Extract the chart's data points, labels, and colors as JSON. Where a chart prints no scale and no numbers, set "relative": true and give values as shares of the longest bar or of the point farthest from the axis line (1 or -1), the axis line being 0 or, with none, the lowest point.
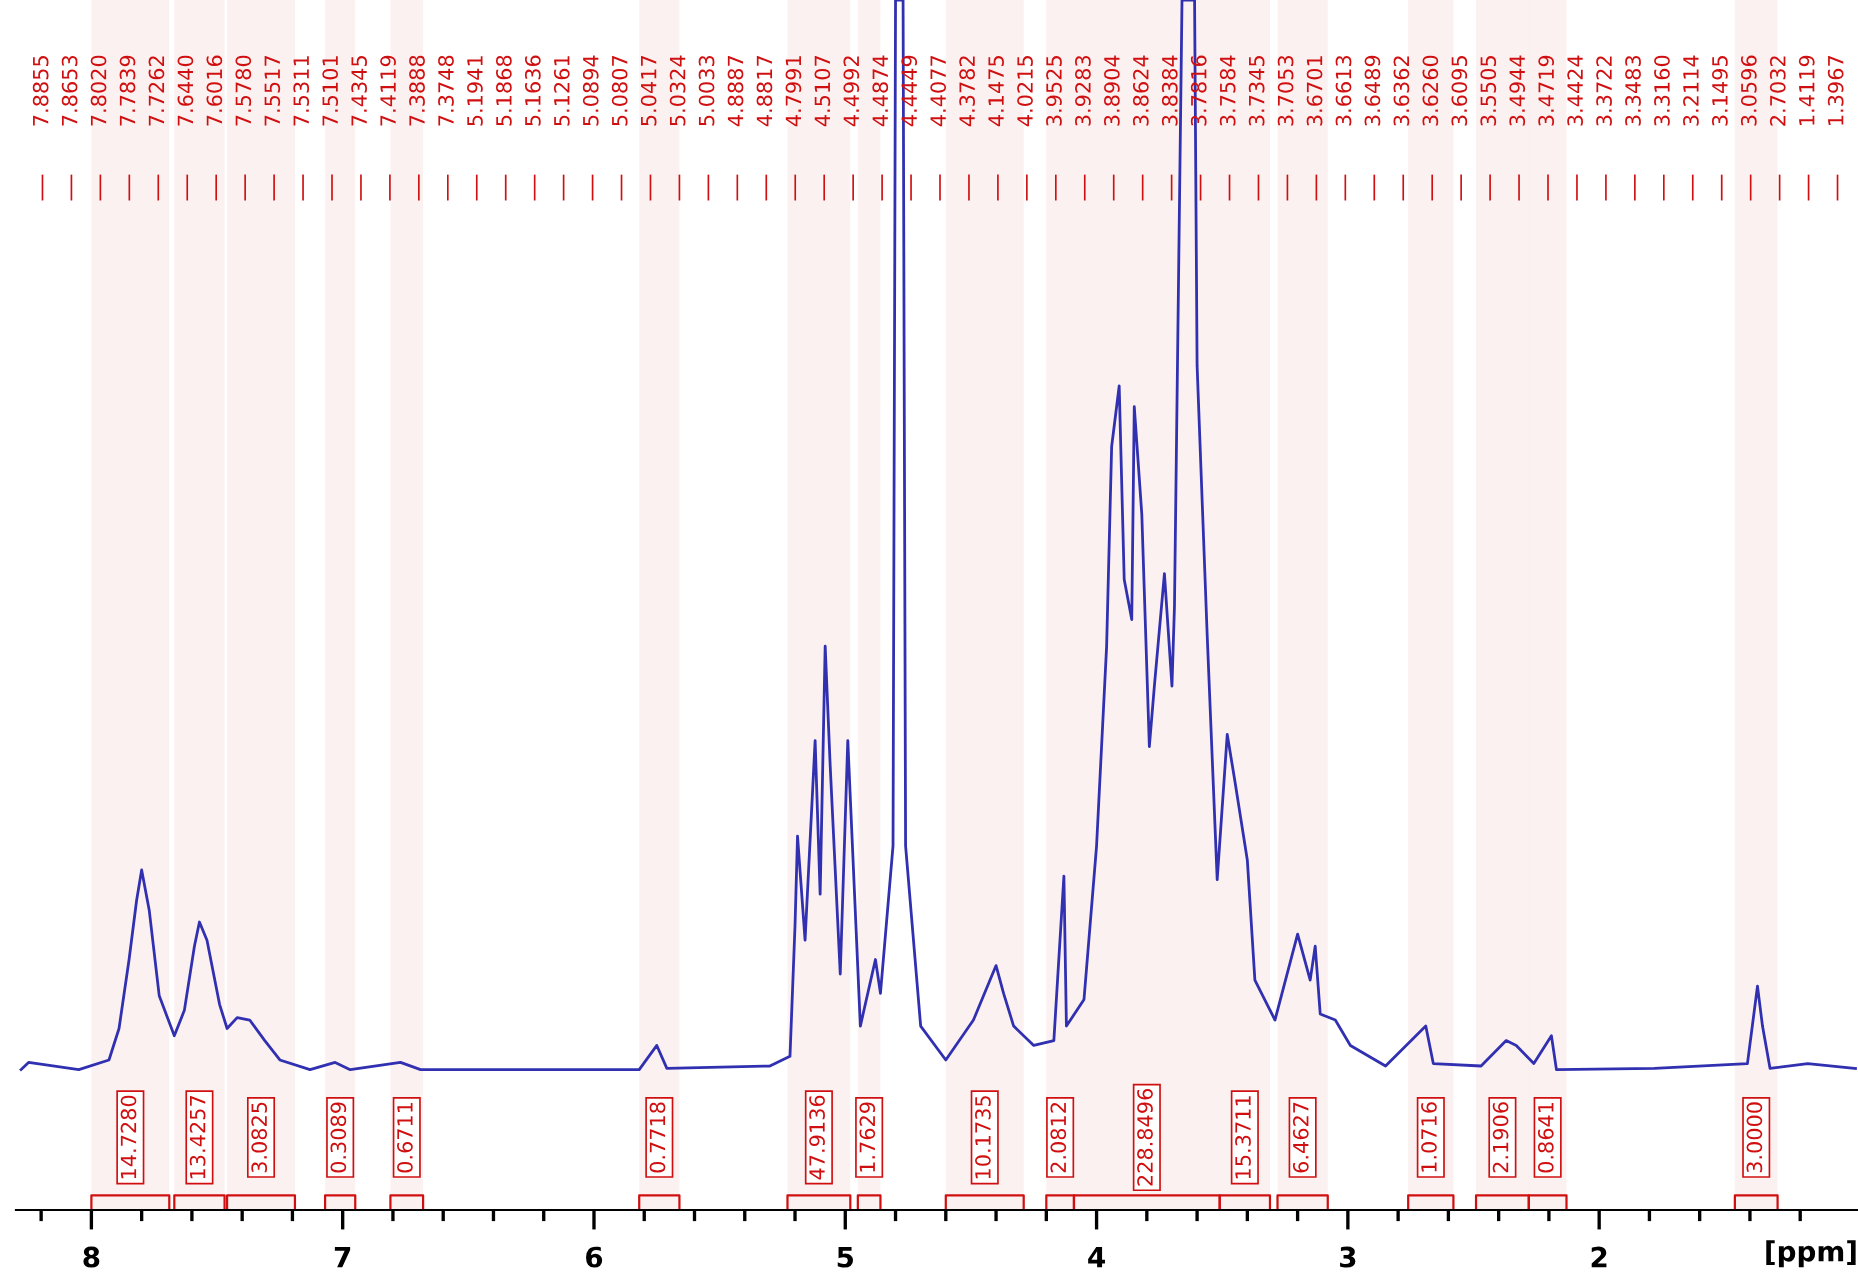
{
  "chart_data": {
    "type": "line",
    "relative": true,
    "xlabel": "[ppm]",
    "xlim": [
      8.3,
      0.97
    ],
    "xticks": [
      {
        "value": 8.2,
        "label": null
      },
      8,
      {
        "value": 7.8,
        "label": null
      },
      {
        "value": 7.6,
        "label": null
      },
      {
        "value": 7.4,
        "label": null
      },
      {
        "value": 7.2,
        "label": null
      },
      7,
      {
        "value": 6.8,
        "label": null
      },
      {
        "value": 6.6,
        "label": null
      },
      {
        "value": 6.4,
        "label": null
      },
      {
        "value": 6.2,
        "label": null
      },
      6,
      {
        "value": 5.8,
        "label": null
      },
      {
        "value": 5.6,
        "label": null
      },
      {
        "value": 5.4,
        "label": null
      },
      {
        "value": 5.2,
        "label": null
      },
      5,
      {
        "value": 4.8,
        "label": null
      },
      {
        "value": 4.6,
        "label": null
      },
      {
        "value": 4.4,
        "label": null
      },
      {
        "value": 4.2,
        "label": null
      },
      4,
      {
        "value": 3.8,
        "label": null
      },
      {
        "value": 3.6,
        "label": null
      },
      {
        "value": 3.4,
        "label": null
      },
      {
        "value": 3.2,
        "label": null
      },
      3,
      {
        "value": 2.8,
        "label": null
      },
      {
        "value": 2.6,
        "label": null
      },
      {
        "value": 2.4,
        "label": null
      },
      {
        "value": 2.2,
        "label": null
      },
      2,
      {
        "value": 1.8,
        "label": null
      },
      {
        "value": 1.6,
        "label": null
      },
      {
        "value": 1.4,
        "label": null
      },
      {
        "value": 1.2,
        "label": null
      }
    ],
    "series": [
      {
        "color": "#3030b0",
        "x": [
          8.28,
          8.25,
          8.05,
          7.93,
          7.89,
          7.85,
          7.82,
          7.8,
          7.77,
          7.73,
          7.67,
          7.63,
          7.59,
          7.57,
          7.54,
          7.49,
          7.46,
          7.42,
          7.37,
          7.31,
          7.25,
          7.13,
          7.03,
          6.97,
          6.77,
          6.69,
          5.82,
          5.75,
          5.71,
          5.3,
          5.22,
          5.2,
          5.19,
          5.16,
          5.12,
          5.1,
          5.08,
          5.06,
          5.02,
          4.99,
          4.94,
          4.88,
          4.86,
          4.81,
          4.8,
          4.77,
          4.76,
          4.7,
          4.6,
          4.49,
          4.4,
          4.37,
          4.33,
          4.25,
          4.17,
          4.13,
          4.12,
          4.05,
          4.0,
          3.96,
          3.94,
          3.91,
          3.89,
          3.86,
          3.85,
          3.82,
          3.79,
          3.77,
          3.73,
          3.7,
          3.69,
          3.66,
          3.61,
          3.6,
          3.56,
          3.52,
          3.48,
          3.45,
          3.4,
          3.37,
          3.29,
          3.2,
          3.15,
          3.13,
          3.11,
          3.05,
          2.99,
          2.85,
          2.69,
          2.66,
          2.47,
          2.37,
          2.33,
          2.26,
          2.19,
          2.17,
          1.78,
          1.41,
          1.37,
          1.35,
          1.32,
          1.17,
          0.98
        ],
        "values": [
          0.116,
          0.122,
          0.116,
          0.124,
          0.15,
          0.207,
          0.256,
          0.281,
          0.248,
          0.177,
          0.144,
          0.165,
          0.218,
          0.238,
          0.223,
          0.17,
          0.15,
          0.159,
          0.157,
          0.14,
          0.124,
          0.116,
          0.122,
          0.116,
          0.122,
          0.116,
          0.116,
          0.136,
          0.117,
          0.119,
          0.127,
          0.235,
          0.309,
          0.223,
          0.388,
          0.261,
          0.466,
          0.367,
          0.195,
          0.388,
          0.152,
          0.207,
          0.179,
          0.301,
          1.0,
          1.0,
          0.301,
          0.152,
          0.124,
          0.157,
          0.202,
          0.179,
          0.152,
          0.136,
          0.14,
          0.276,
          0.152,
          0.174,
          0.301,
          0.466,
          0.631,
          0.681,
          0.521,
          0.488,
          0.664,
          0.575,
          0.383,
          0.433,
          0.526,
          0.433,
          0.499,
          1.0,
          1.0,
          0.698,
          0.476,
          0.273,
          0.393,
          0.355,
          0.289,
          0.19,
          0.157,
          0.228,
          0.19,
          0.218,
          0.162,
          0.157,
          0.136,
          0.119,
          0.152,
          0.121,
          0.119,
          0.14,
          0.136,
          0.121,
          0.144,
          0.116,
          0.117,
          0.121,
          0.185,
          0.152,
          0.117,
          0.121,
          0.117
        ]
      }
    ],
    "bands": [
      {
        "axis": "x",
        "from": 8.0,
        "to": 7.69,
        "label": "14.7280",
        "color": "#d01010"
      },
      {
        "axis": "x",
        "from": 7.67,
        "to": 7.47,
        "label": "13.4257",
        "color": "#d01010"
      },
      {
        "axis": "x",
        "from": 7.46,
        "to": 7.19,
        "label": "3.0825",
        "color": "#d01010"
      },
      {
        "axis": "x",
        "from": 7.07,
        "to": 6.95,
        "label": "0.3089",
        "color": "#d01010"
      },
      {
        "axis": "x",
        "from": 6.81,
        "to": 6.68,
        "label": "0.6711",
        "color": "#d01010"
      },
      {
        "axis": "x",
        "from": 5.82,
        "to": 5.66,
        "label": "0.7718",
        "color": "#d01010"
      },
      {
        "axis": "x",
        "from": 5.23,
        "to": 4.98,
        "label": "47.9136",
        "color": "#d01010"
      },
      {
        "axis": "x",
        "from": 4.95,
        "to": 4.86,
        "label": "1.7629",
        "color": "#d01010"
      },
      {
        "axis": "x",
        "from": 4.6,
        "to": 4.29,
        "label": "10.1735",
        "color": "#d01010"
      },
      {
        "axis": "x",
        "from": 4.2,
        "to": 4.09,
        "label": "2.0812",
        "color": "#d01010"
      },
      {
        "axis": "x",
        "from": 4.09,
        "to": 3.51,
        "label": "228.8496",
        "color": "#d01010"
      },
      {
        "axis": "x",
        "from": 3.51,
        "to": 3.31,
        "label": "15.3711",
        "color": "#d01010"
      },
      {
        "axis": "x",
        "from": 3.28,
        "to": 3.08,
        "label": "6.4627",
        "color": "#d01010"
      },
      {
        "axis": "x",
        "from": 2.76,
        "to": 2.58,
        "label": "1.0716",
        "color": "#d01010"
      },
      {
        "axis": "x",
        "from": 2.49,
        "to": 2.28,
        "label": "2.1906",
        "color": "#d01010"
      },
      {
        "axis": "x",
        "from": 2.28,
        "to": 2.13,
        "label": "0.8641",
        "color": "#d01010"
      },
      {
        "axis": "x",
        "from": 1.46,
        "to": 1.29,
        "label": "3.0000",
        "color": "#d01010"
      }
    ],
    "annotations": [
      "7.8855",
      "7.8653",
      "7.8020",
      "7.7839",
      "7.7262",
      "7.6440",
      "7.6016",
      "7.5780",
      "7.5517",
      "7.5311",
      "7.5101",
      "7.4345",
      "7.4119",
      "7.3888",
      "7.3748",
      "5.1941",
      "5.1868",
      "5.1636",
      "5.1261",
      "5.0894",
      "5.0807",
      "5.0417",
      "5.0324",
      "5.0033",
      "4.8887",
      "4.8817",
      "4.7991",
      "4.5107",
      "4.4992",
      "4.4874",
      "4.4449",
      "4.4077",
      "4.3782",
      "4.1475",
      "4.0215",
      "3.9525",
      "3.9283",
      "3.8904",
      "3.8624",
      "3.8384",
      "3.7816",
      "3.7584",
      "3.7345",
      "3.7053",
      "3.6701",
      "3.6613",
      "3.6489",
      "3.6362",
      "3.6260",
      "3.6095",
      "3.5505",
      "3.4944",
      "3.4719",
      "3.4424",
      "3.3722",
      "3.3483",
      "3.3160",
      "3.2114",
      "3.1495",
      "3.0596",
      "2.7032",
      "1.4119",
      "1.3967"
    ]
  }
}
